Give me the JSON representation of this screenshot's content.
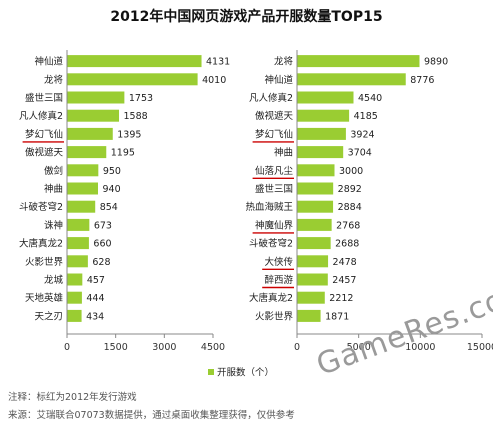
{
  "title": "2012年中国网页游戏产品开服数量TOP15",
  "legend_label": "开服数（个）",
  "note_line1": "注释：标红为2012年发行游戏",
  "note_line2": "来源：艾瑞联合07073数据提供，通过桌面收集整理获得，仅供参考",
  "watermark": "GameRes.com",
  "colors": {
    "bar": "#9acd32",
    "highlight_underline": "#cc0000",
    "axis": "#888888"
  },
  "chart_data": [
    {
      "type": "bar",
      "orientation": "horizontal",
      "categories": [
        "神仙道",
        "龙将",
        "盛世三国",
        "凡人修真2",
        "梦幻飞仙",
        "傲视遮天",
        "傲剑",
        "神曲",
        "斗破苍穹2",
        "诛神",
        "大唐真龙2",
        "火影世界",
        "龙城",
        "天地英雄",
        "天之刃"
      ],
      "values": [
        4131,
        4010,
        1753,
        1588,
        1395,
        1195,
        950,
        940,
        854,
        673,
        660,
        628,
        457,
        444,
        434
      ],
      "highlighted": [
        "梦幻飞仙"
      ],
      "xticks": [
        0,
        1500,
        3000,
        4500
      ],
      "xlim": [
        0,
        4500
      ]
    },
    {
      "type": "bar",
      "orientation": "horizontal",
      "categories": [
        "龙将",
        "神仙道",
        "凡人修真2",
        "傲视遮天",
        "梦幻飞仙",
        "神曲",
        "仙落凡尘",
        "盛世三国",
        "热血海贼王",
        "神魔仙界",
        "斗破苍穹2",
        "大侠传",
        "醉西游",
        "大唐真龙2",
        "火影世界"
      ],
      "values": [
        9890,
        8776,
        4540,
        4185,
        3924,
        3704,
        3000,
        2892,
        2884,
        2768,
        2688,
        2478,
        2457,
        2212,
        1871
      ],
      "highlighted": [
        "梦幻飞仙",
        "仙落凡尘",
        "神魔仙界",
        "大侠传",
        "醉西游"
      ],
      "xticks": [
        0,
        5000,
        10000,
        15000
      ],
      "xlim": [
        0,
        15000
      ]
    }
  ]
}
